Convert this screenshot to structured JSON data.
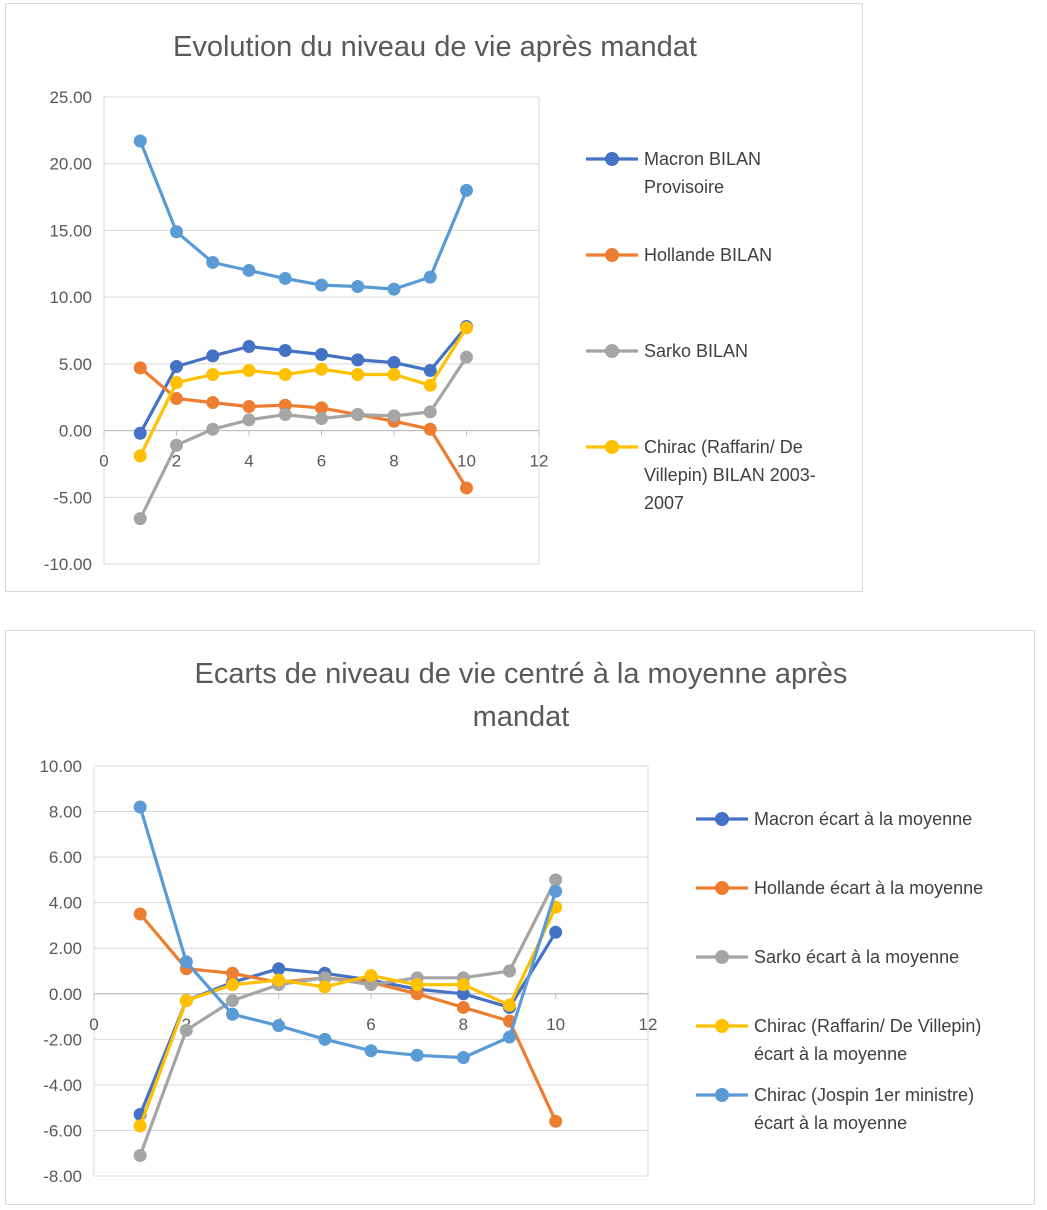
{
  "chart_data": [
    {
      "type": "line",
      "title": "Evolution du niveau de vie après mandat",
      "xlabel": "",
      "ylabel": "",
      "xlim": [
        0,
        12
      ],
      "ylim": [
        -10,
        25
      ],
      "x_ticks": [
        "0",
        "2",
        "4",
        "6",
        "8",
        "10",
        "12"
      ],
      "y_ticks": [
        "25.00",
        "20.00",
        "15.00",
        "10.00",
        "5.00",
        "0.00",
        "-5.00",
        "-10.00"
      ],
      "grid": "horizontal",
      "legend_position": "right",
      "x": [
        1,
        2,
        3,
        4,
        5,
        6,
        7,
        8,
        9,
        10
      ],
      "series": [
        {
          "name": "Macron BILAN Provisoire",
          "legend_lines": [
            "Macron BILAN",
            "Provisoire"
          ],
          "color": "#4472C4",
          "values": [
            -0.2,
            4.8,
            5.6,
            6.3,
            6.0,
            5.7,
            5.3,
            5.1,
            4.5,
            7.8
          ]
        },
        {
          "name": "Hollande BILAN",
          "legend_lines": [
            "Hollande BILAN"
          ],
          "color": "#ED7D31",
          "values": [
            4.7,
            2.4,
            2.1,
            1.8,
            1.9,
            1.7,
            1.2,
            0.7,
            0.1,
            -4.3
          ]
        },
        {
          "name": "Sarko BILAN",
          "legend_lines": [
            "Sarko BILAN"
          ],
          "color": "#A5A5A5",
          "values": [
            -6.6,
            -1.1,
            0.1,
            0.8,
            1.2,
            0.9,
            1.2,
            1.1,
            1.4,
            5.5
          ]
        },
        {
          "name": "Chirac (Raffarin/ De Villepin) BILAN 2003-2007",
          "legend_lines": [
            "Chirac (Raffarin/ De",
            "Villepin) BILAN 2003-",
            "2007"
          ],
          "color": "#FFC000",
          "values": [
            -1.9,
            3.6,
            4.2,
            4.5,
            4.2,
            4.6,
            4.2,
            4.2,
            3.4,
            7.7
          ]
        },
        {
          "name": "",
          "legend_lines": [],
          "color": "#5B9BD5",
          "values": [
            21.7,
            14.9,
            12.6,
            12.0,
            11.4,
            10.9,
            10.8,
            10.6,
            11.5,
            18.0
          ]
        }
      ]
    },
    {
      "type": "line",
      "title": "Ecarts de niveau de vie centré à la moyenne après mandat",
      "title_lines": [
        "Ecarts de niveau de vie centré à la moyenne après",
        "mandat"
      ],
      "xlabel": "",
      "ylabel": "",
      "xlim": [
        0,
        12
      ],
      "ylim": [
        -8,
        10
      ],
      "x_ticks": [
        "0",
        "2",
        "4",
        "6",
        "8",
        "10",
        "12"
      ],
      "y_ticks": [
        "10.00",
        "8.00",
        "6.00",
        "4.00",
        "2.00",
        "0.00",
        "-2.00",
        "-4.00",
        "-6.00",
        "-8.00"
      ],
      "grid": "horizontal",
      "legend_position": "right",
      "x": [
        1,
        2,
        3,
        4,
        5,
        6,
        7,
        8,
        9,
        10
      ],
      "series": [
        {
          "name": "Macron écart à la moyenne",
          "legend_lines": [
            "Macron écart à la moyenne"
          ],
          "color": "#4472C4",
          "values": [
            -5.3,
            -0.3,
            0.5,
            1.1,
            0.9,
            0.6,
            0.2,
            0.0,
            -0.6,
            2.7
          ]
        },
        {
          "name": "Hollande écart à la moyenne",
          "legend_lines": [
            "Hollande écart à la moyenne"
          ],
          "color": "#ED7D31",
          "values": [
            3.5,
            1.1,
            0.9,
            0.5,
            0.7,
            0.5,
            0.0,
            -0.6,
            -1.2,
            -5.6
          ]
        },
        {
          "name": "Sarko écart à la moyenne",
          "legend_lines": [
            "Sarko écart à la moyenne"
          ],
          "color": "#A5A5A5",
          "values": [
            -7.1,
            -1.6,
            -0.3,
            0.4,
            0.7,
            0.4,
            0.7,
            0.7,
            1.0,
            5.0
          ]
        },
        {
          "name": "Chirac (Raffarin/ De Villepin) écart à la moyenne",
          "legend_lines": [
            "Chirac (Raffarin/ De Villepin)",
            "écart à la moyenne"
          ],
          "color": "#FFC000",
          "values": [
            -5.8,
            -0.3,
            0.4,
            0.6,
            0.3,
            0.8,
            0.4,
            0.4,
            -0.5,
            3.8
          ]
        },
        {
          "name": "Chirac (Jospin 1er ministre) écart à la moyenne",
          "legend_lines": [
            "Chirac (Jospin 1er ministre)",
            "écart à la moyenne"
          ],
          "color": "#5B9BD5",
          "values": [
            8.2,
            1.4,
            -0.9,
            -1.4,
            -2.0,
            -2.5,
            -2.7,
            -2.8,
            -1.9,
            4.5
          ]
        }
      ]
    }
  ]
}
